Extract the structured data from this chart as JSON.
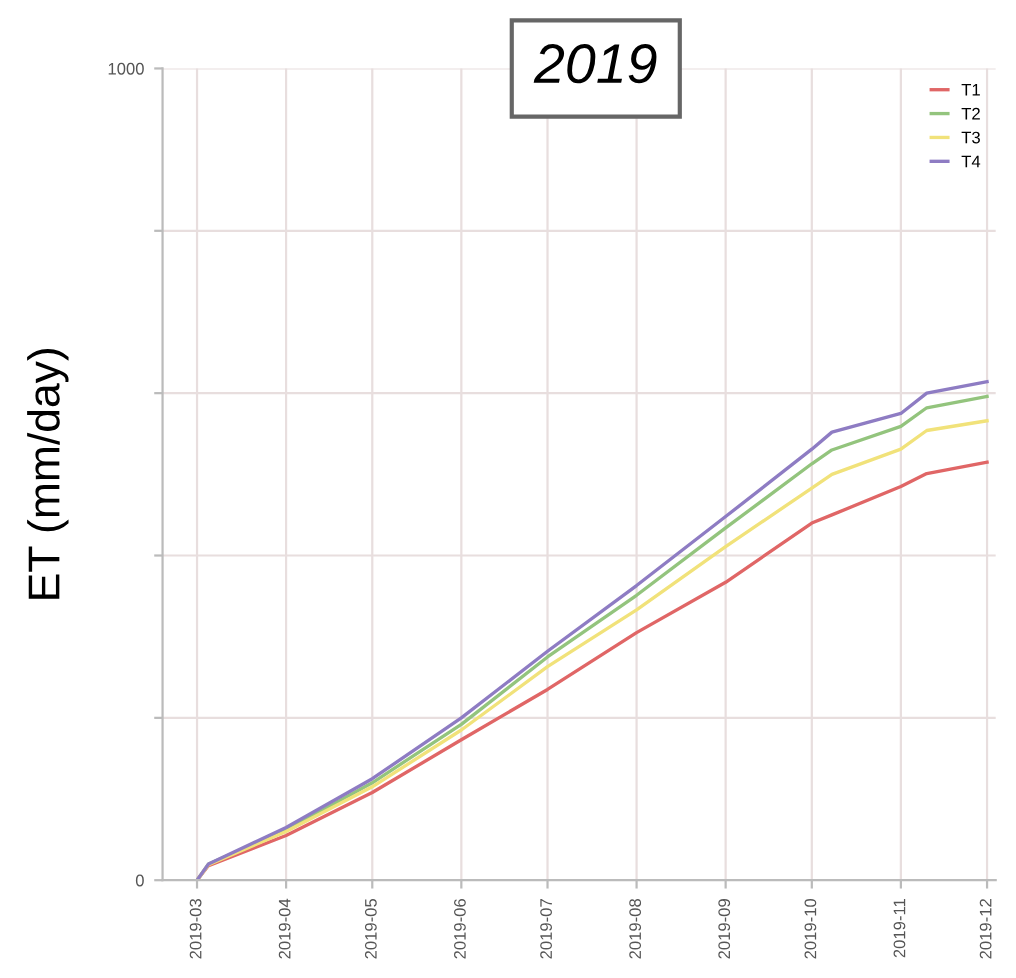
{
  "chart_data": {
    "type": "line",
    "title": "2019",
    "ylabel": "ET (mm/day)",
    "x": [
      "2019-03-01",
      "2019-03-05",
      "2019-04-01",
      "2019-05-01",
      "2019-06-01",
      "2019-07-01",
      "2019-08-01",
      "2019-09-01",
      "2019-10-01",
      "2019-10-08",
      "2019-11-01",
      "2019-11-10",
      "2019-12-01"
    ],
    "series": [
      {
        "name": "T1",
        "color": "#e06666",
        "values": [
          0,
          18,
          55,
          108,
          173,
          235,
          305,
          367,
          440,
          450,
          485,
          501,
          515
        ]
      },
      {
        "name": "T2",
        "color": "#93c47d",
        "values": [
          0,
          20,
          62,
          120,
          192,
          275,
          351,
          434,
          513,
          530,
          559,
          582,
          596
        ]
      },
      {
        "name": "T3",
        "color": "#f1e27a",
        "values": [
          0,
          19,
          60,
          115,
          185,
          263,
          333,
          411,
          483,
          500,
          531,
          554,
          566
        ]
      },
      {
        "name": "T4",
        "color": "#8e7cc3",
        "values": [
          0,
          20,
          65,
          125,
          200,
          282,
          363,
          448,
          531,
          552,
          575,
          600,
          614
        ]
      }
    ],
    "xlim": [
      "2019-02-17",
      "2019-12-04"
    ],
    "xticks": [
      {
        "value": "2019-03-01",
        "label": "2019-03"
      },
      {
        "value": "2019-04-01",
        "label": "2019-04"
      },
      {
        "value": "2019-05-01",
        "label": "2019-05"
      },
      {
        "value": "2019-06-01",
        "label": "2019-06"
      },
      {
        "value": "2019-07-01",
        "label": "2019-07"
      },
      {
        "value": "2019-08-01",
        "label": "2019-08"
      },
      {
        "value": "2019-09-01",
        "label": "2019-09"
      },
      {
        "value": "2019-10-01",
        "label": "2019-10"
      },
      {
        "value": "2019-11-01",
        "label": "2019-11"
      },
      {
        "value": "2019-12-01",
        "label": "2019-12"
      }
    ],
    "ylim": [
      0,
      1000
    ],
    "yticks": [
      0,
      {
        "value": 200,
        "label": null
      },
      {
        "value": 400,
        "label": null
      },
      {
        "value": 600,
        "label": null
      },
      {
        "value": 800,
        "label": null
      },
      1000
    ],
    "grid": true,
    "legend": "top right",
    "marker": "none",
    "line_style": "solid"
  }
}
